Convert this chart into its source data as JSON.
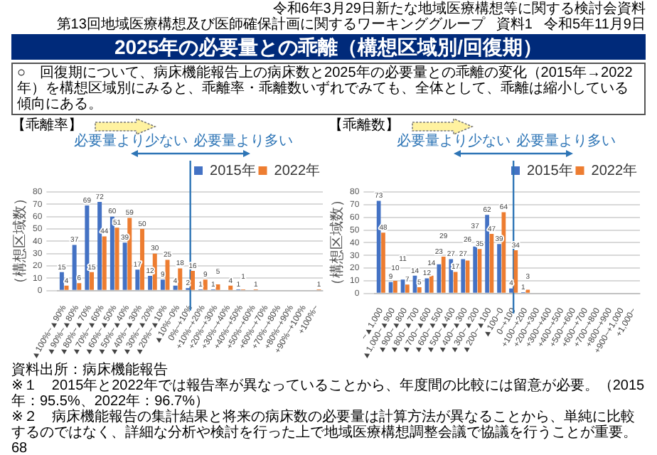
{
  "chart_data": [
    {
      "type": "other",
      "title": "2025年の必要量との乖離（構想区域別/回復期）",
      "subtitle": "○　回復期について、病床機能報告上の病床数と2025年の必要量との乖離の変化（2015年→2022年）を構想区域別にみると、乖離率・乖離数いずれでみても、全体として、乖離は縮小している傾向にある。",
      "annotations": [
        "令和6年3月29日新たな地域医療構想等に関する検討会資料",
        "第13回地域医療構想及び医師確保計画に関するワーキンググループ",
        "資料1",
        "令和5年11月9日"
      ]
    },
    {
      "type": "bar",
      "title": "【乖離率】",
      "ylabel": "（構想区域数）",
      "categories": [
        "▲100%~▲90%",
        "▲90%~▲80%",
        "▲80%~▲70%",
        "▲70%~▲60%",
        "▲60%~▲50%",
        "▲50%~▲40%",
        "▲40%~▲30%",
        "▲30%~▲20%",
        "▲20%~▲10%",
        "▲10%~0%",
        "0%~+10%",
        "+10%~+20%",
        "+20%~+30%",
        "+30%~+40%",
        "+40%~+50%",
        "+50%~+60%",
        "+60%~+70%",
        "+70%~+80%",
        "+80%~+90%",
        "+90%~+100%",
        "+100%~"
      ],
      "series": [
        {
          "name": "2015年",
          "color": "#4472c4",
          "values": [
            15,
            37,
            69,
            72,
            60,
            39,
            17,
            12,
            9,
            4,
            2,
            1,
            1,
            null,
            1,
            null,
            null,
            null,
            null,
            null,
            null
          ]
        },
        {
          "name": "2022年",
          "color": "#ed7d31",
          "values": [
            4,
            6,
            15,
            44,
            51,
            59,
            50,
            30,
            25,
            18,
            16,
            9,
            5,
            4,
            1,
            1,
            null,
            null,
            null,
            null,
            1
          ]
        }
      ],
      "ylim": [
        0,
        80
      ],
      "yticks": [
        0,
        10,
        20,
        30,
        40,
        50,
        60,
        70,
        80
      ],
      "grid": "y",
      "legend": "top right",
      "data_labels": true,
      "ref_lines": [
        {
          "axis": "x",
          "value": "0%~+10%",
          "color": "#2e75b6"
        }
      ],
      "annotations": [
        "必要量より少ない",
        "必要量より多い"
      ]
    },
    {
      "type": "bar",
      "title": "【乖離数】",
      "ylabel": "（構想区域数）",
      "categories": [
        "~▲1,000",
        "▲1,000~▲900",
        "▲900~▲800",
        "▲800~▲700",
        "▲700~▲600",
        "▲600~▲500",
        "▲500~▲400",
        "▲400~▲300",
        "▲300~▲200",
        "▲200~▲100",
        "▲100~0",
        "0~+100",
        "+100~+200",
        "+200~+300",
        "+300~+400",
        "+400~+500",
        "+500~+600",
        "+600~+700",
        "+700~+800",
        "+800~+900",
        "+900~+1,000",
        "+1,000~"
      ],
      "series": [
        {
          "name": "2015年",
          "color": "#4472c4",
          "values": [
            73,
            9,
            11,
            14,
            12,
            23,
            27,
            27,
            37,
            62,
            39,
            4,
            1,
            null,
            null,
            null,
            null,
            null,
            null,
            null,
            null,
            null
          ]
        },
        {
          "name": "2022年",
          "color": "#ed7d31",
          "values": [
            48,
            10,
            7,
            5,
            14,
            29,
            17,
            26,
            35,
            47,
            64,
            34,
            3,
            null,
            null,
            null,
            null,
            null,
            null,
            null,
            null,
            null
          ]
        }
      ],
      "ylim": [
        0,
        80
      ],
      "yticks": [
        0,
        10,
        20,
        30,
        40,
        50,
        60,
        70,
        80
      ],
      "grid": "y",
      "legend": "top right",
      "data_labels": true,
      "ref_lines": [
        {
          "axis": "x",
          "value": "0~+100",
          "color": "#2e75b6"
        }
      ],
      "annotations": [
        "必要量より少ない",
        "必要量より多い"
      ]
    },
    {
      "type": "other",
      "annotations": [
        "資料出所：病床機能報告",
        "※１　2015年と2022年では報告率が異なっていることから、年度間の比較には留意が必要。（2015年：95.5%、2022年：96.7%）",
        "※２　病床機能報告の集計結果と将来の病床数の必要量は計算方法が異なることから、単純に比較するのではなく、詳細な分析や検討を行った上で地域医療構想調整会議で協議を行うことが重要。",
        "68"
      ]
    }
  ]
}
